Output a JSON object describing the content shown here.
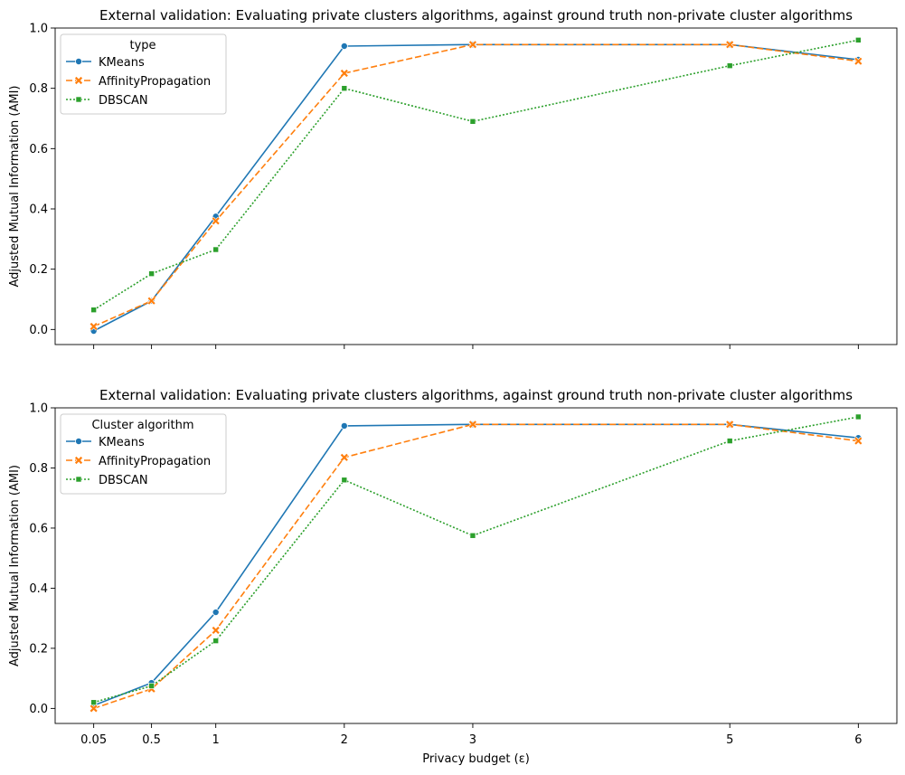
{
  "chart_data": [
    {
      "type": "line",
      "title": "External validation: Evaluating private clusters algorithms, against ground truth non-private cluster algorithms",
      "ylabel": "Adjusted Mutual Information (AMI)",
      "xlabel": "",
      "x": [
        0.05,
        0.5,
        1,
        2,
        3,
        5,
        6
      ],
      "x_tick_labels": [
        "",
        "",
        "",
        "",
        "",
        "",
        ""
      ],
      "xlim": [
        -0.25,
        6.3
      ],
      "ylim": [
        -0.05,
        1.0
      ],
      "y_ticks": [
        "0.0",
        "0.2",
        "0.4",
        "0.6",
        "0.8",
        "1.0"
      ],
      "legend": {
        "title": "type",
        "placement": "top-left"
      },
      "grid": false,
      "series": [
        {
          "name": "KMeans",
          "color": "#1f77b4",
          "marker": "circle",
          "dash": "solid",
          "values": [
            -0.005,
            0.095,
            0.375,
            0.94,
            0.945,
            0.945,
            0.895
          ]
        },
        {
          "name": "AffinityPropagation",
          "color": "#ff7f0e",
          "marker": "x",
          "dash": "dashed",
          "values": [
            0.01,
            0.095,
            0.36,
            0.85,
            0.945,
            0.945,
            0.89
          ]
        },
        {
          "name": "DBSCAN",
          "color": "#2ca02c",
          "marker": "square",
          "dash": "dotted",
          "values": [
            0.065,
            0.185,
            0.265,
            0.8,
            0.69,
            0.875,
            0.96
          ]
        }
      ]
    },
    {
      "type": "line",
      "title": "External validation: Evaluating private clusters algorithms, against ground truth non-private cluster algorithms",
      "ylabel": "Adjusted Mutual Information (AMI)",
      "xlabel": "Privacy budget (ε)",
      "x": [
        0.05,
        0.5,
        1,
        2,
        3,
        5,
        6
      ],
      "x_tick_labels": [
        "0.05",
        "0.5",
        "1",
        "2",
        "3",
        "5",
        "6"
      ],
      "xlim": [
        -0.25,
        6.3
      ],
      "ylim": [
        -0.05,
        1.0
      ],
      "y_ticks": [
        "0.0",
        "0.2",
        "0.4",
        "0.6",
        "0.8",
        "1.0"
      ],
      "legend": {
        "title": "Cluster algorithm",
        "placement": "top-left"
      },
      "grid": false,
      "series": [
        {
          "name": "KMeans",
          "color": "#1f77b4",
          "marker": "circle",
          "dash": "solid",
          "values": [
            0.01,
            0.085,
            0.32,
            0.94,
            0.945,
            0.945,
            0.9
          ]
        },
        {
          "name": "AffinityPropagation",
          "color": "#ff7f0e",
          "marker": "x",
          "dash": "dashed",
          "values": [
            0.0,
            0.065,
            0.26,
            0.835,
            0.945,
            0.945,
            0.89
          ]
        },
        {
          "name": "DBSCAN",
          "color": "#2ca02c",
          "marker": "square",
          "dash": "dotted",
          "values": [
            0.02,
            0.075,
            0.225,
            0.76,
            0.575,
            0.89,
            0.97
          ]
        }
      ]
    }
  ]
}
